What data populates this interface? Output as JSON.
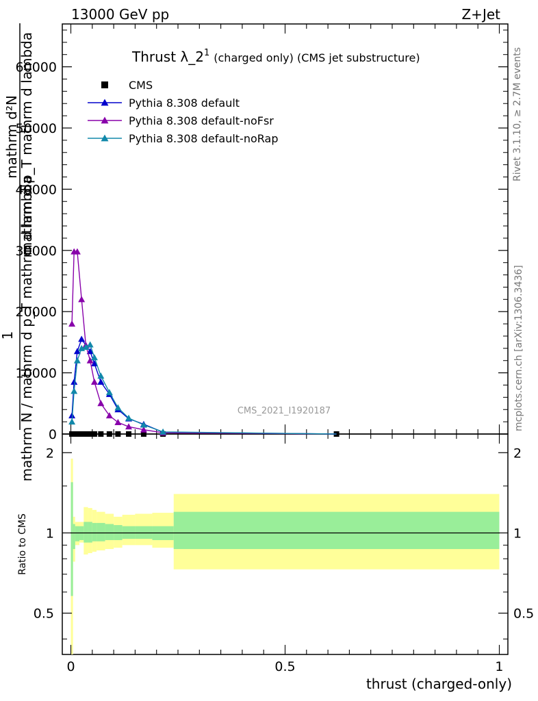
{
  "header": {
    "energy_label": "13000 GeV pp",
    "process_label": "Z+Jet",
    "title_main": "Thrust λ_2",
    "title_sup": "1",
    "title_rest": "(charged only) (CMS jet substructure)",
    "analysis_id": "CMS_2021_I1920187",
    "side_rivet": "Rivet 3.1.10, ≥ 2.7M events",
    "side_mcplots": "mcplots.cern.ch [arXiv:1306.3436]"
  },
  "yaxis_main": {
    "label_one": "1",
    "label_line1": "mathrm d²N",
    "label_line2": "mathrm d p_T mathrm d lambda",
    "label_line3": "mathrm N / mathrm d p_T mathrm d lambda",
    "label_line4": "mathrm d",
    "ticks": [
      "0",
      "10000",
      "20000",
      "30000",
      "40000",
      "50000",
      "60000"
    ]
  },
  "yaxis_ratio": {
    "label": "Ratio to CMS",
    "ticks": [
      "0.5",
      "1",
      "2"
    ]
  },
  "xaxis": {
    "label": "thrust (charged-only)",
    "ticks": [
      "0",
      "0.5",
      "1"
    ]
  },
  "chart_data": [
    {
      "type": "line",
      "panel": "main",
      "xlim": [
        -0.02,
        1.02
      ],
      "ylim": [
        0,
        67000
      ],
      "legend_position": "top-left",
      "series": [
        {
          "name": "CMS",
          "marker": "square",
          "color": "#000000",
          "x": [
            0.0025,
            0.0075,
            0.015,
            0.025,
            0.035,
            0.045,
            0.055,
            0.07,
            0.09,
            0.11,
            0.135,
            0.17,
            0.215,
            0.62
          ],
          "y": [
            0,
            0,
            0,
            0,
            0,
            0,
            0,
            0,
            0,
            0,
            0,
            0,
            0,
            0
          ]
        },
        {
          "name": "Pythia 8.308 default",
          "marker": "triangle",
          "color": "#0000cc",
          "x": [
            0.0025,
            0.0075,
            0.015,
            0.025,
            0.035,
            0.045,
            0.055,
            0.07,
            0.09,
            0.11,
            0.135,
            0.17,
            0.215,
            0.62
          ],
          "y": [
            3000,
            8500,
            13500,
            15500,
            14500,
            13500,
            11500,
            8500,
            6500,
            4000,
            2500,
            1600,
            300,
            0
          ]
        },
        {
          "name": "Pythia 8.308 default-noFsr",
          "marker": "triangle",
          "color": "#8800aa",
          "x": [
            0.0025,
            0.0075,
            0.015,
            0.025,
            0.035,
            0.045,
            0.055,
            0.07,
            0.09,
            0.11,
            0.135,
            0.17,
            0.215,
            0.62
          ],
          "y": [
            18000,
            29800,
            29800,
            22000,
            14500,
            12000,
            8500,
            5000,
            3000,
            1900,
            1200,
            700,
            200,
            0
          ]
        },
        {
          "name": "Pythia 8.308 default-noRap",
          "marker": "triangle",
          "color": "#1188aa",
          "x": [
            0.0025,
            0.0075,
            0.015,
            0.025,
            0.035,
            0.045,
            0.055,
            0.07,
            0.09,
            0.11,
            0.135,
            0.17,
            0.215,
            0.62
          ],
          "y": [
            2000,
            7000,
            12000,
            14000,
            14200,
            14600,
            12500,
            9500,
            6800,
            4300,
            2600,
            1500,
            350,
            0
          ]
        }
      ]
    },
    {
      "type": "area",
      "panel": "ratio",
      "ylim": [
        0.35,
        2.35
      ],
      "log_y": true,
      "reference_line": 1,
      "bands": {
        "x_edges": [
          0.0,
          0.005,
          0.01,
          0.02,
          0.03,
          0.04,
          0.05,
          0.06,
          0.08,
          0.1,
          0.12,
          0.15,
          0.19,
          0.24,
          1.0
        ],
        "yellow_lo": [
          0.33,
          0.78,
          0.9,
          0.92,
          0.83,
          0.84,
          0.85,
          0.86,
          0.87,
          0.88,
          0.9,
          0.9,
          0.88,
          0.73
        ],
        "yellow_hi": [
          1.9,
          1.15,
          1.1,
          1.1,
          1.25,
          1.24,
          1.22,
          1.2,
          1.18,
          1.15,
          1.17,
          1.18,
          1.19,
          1.4
        ],
        "green_lo": [
          0.58,
          0.87,
          0.93,
          0.94,
          0.92,
          0.92,
          0.93,
          0.93,
          0.94,
          0.94,
          0.95,
          0.95,
          0.94,
          0.87
        ],
        "green_hi": [
          1.55,
          1.08,
          1.06,
          1.06,
          1.1,
          1.1,
          1.09,
          1.09,
          1.08,
          1.07,
          1.06,
          1.06,
          1.06,
          1.2
        ]
      }
    }
  ]
}
